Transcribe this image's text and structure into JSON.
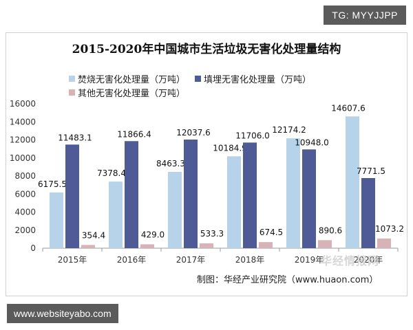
{
  "tg_badge": "TG: MYYJJPP",
  "website_badge": "www.websiteyabo.com",
  "source_note": "制图：华经产业研究院（www.huaon.com）",
  "watermark_text": "华经情报网",
  "chart_data": {
    "type": "bar",
    "title": "2015-2020年中国城市生活垃圾无害化处理量结构",
    "xlabel": "",
    "ylabel": "",
    "categories": [
      "2015年",
      "2016年",
      "2017年",
      "2018年",
      "2019年",
      "2020年"
    ],
    "ylim": [
      0,
      16000
    ],
    "yticks": [
      0,
      2000,
      4000,
      6000,
      8000,
      10000,
      12000,
      14000,
      16000
    ],
    "grid": false,
    "legend": "top-left",
    "series": [
      {
        "name": "焚烧无害化处理量（万吨）",
        "color": "#b6d3ea",
        "values": [
          6175.5,
          7378.4,
          8463.3,
          10184.9,
          12174.2,
          14607.6
        ],
        "labels": [
          "6175.5",
          "7378.4",
          "8463.3",
          "10184.9",
          "12174.2",
          "14607.6"
        ]
      },
      {
        "name": "填埋无害化处理量（万吨）",
        "color": "#4f5b96",
        "values": [
          11483.1,
          11866.4,
          12037.6,
          11706.0,
          10948.0,
          7771.5
        ],
        "labels": [
          "11483.1",
          "11866.4",
          "12037.6",
          "11706.0",
          "10948.0",
          "7771.5"
        ]
      },
      {
        "name": "其他无害化处理量（万吨）",
        "color": "#d7b3b8",
        "values": [
          354.4,
          429.0,
          533.3,
          674.5,
          890.6,
          1073.2
        ],
        "labels": [
          "354.4",
          "429.0",
          "533.3",
          "674.5",
          "890.6",
          "1073.2"
        ]
      }
    ]
  }
}
